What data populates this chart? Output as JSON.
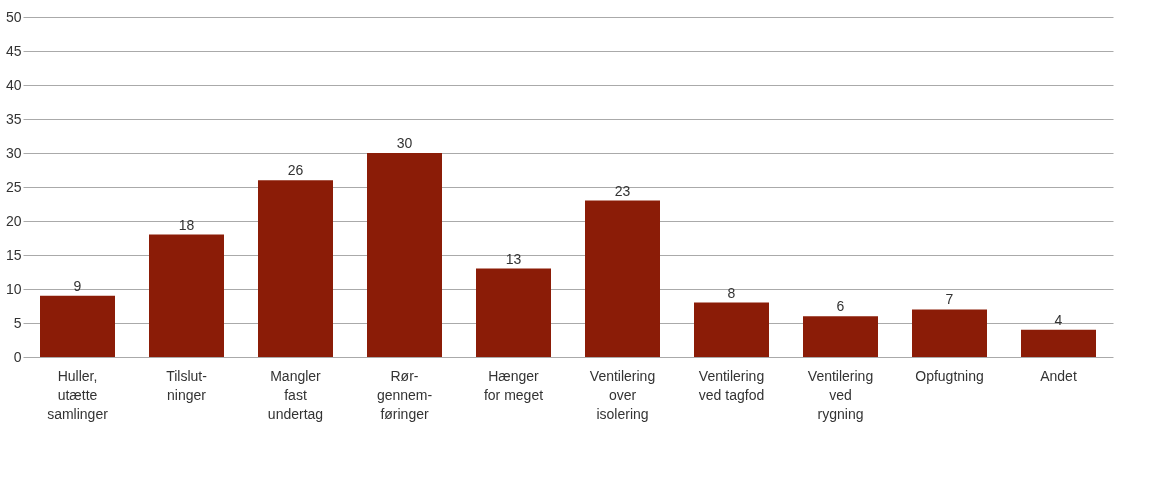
{
  "chart_data": {
    "type": "bar",
    "categories": [
      "Huller,\nutætte\nsamlinger",
      "Tilslut-\nninger",
      "Mangler\nfast\nundertag",
      "Rør-\ngennem-\nføringer",
      "Hænger\nfor meget",
      "Ventilering\nover\nisolering",
      "Ventilering\nved tagfod",
      "Ventilering\nved\nrygning",
      "Opfugtning",
      "Andet"
    ],
    "values": [
      9,
      18,
      26,
      30,
      13,
      23,
      8,
      6,
      7,
      4
    ],
    "color": "#8b1c07",
    "ylim": [
      0,
      50
    ],
    "yticks": [
      0,
      5,
      10,
      15,
      20,
      25,
      30,
      35,
      40,
      45,
      50
    ],
    "grid": "y",
    "data_labels": true
  }
}
